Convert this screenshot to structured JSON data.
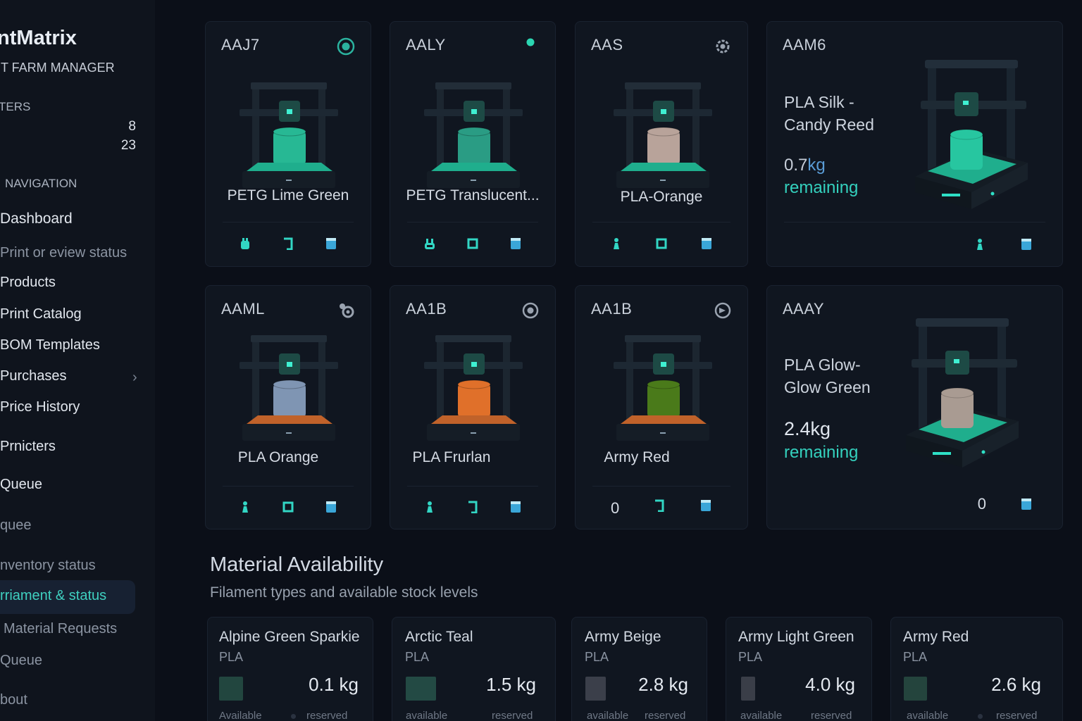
{
  "sidebar": {
    "brand": "intMatrix",
    "brand_sub": "NT FARM MANAGER",
    "printers_label": "TERS",
    "count_a": "8",
    "count_b": "23",
    "nav_label": "NAVIGATION",
    "items": [
      {
        "label": "Dashboard"
      },
      {
        "label": "Print or eview status"
      },
      {
        "label": "Products"
      },
      {
        "label": "Print Catalog"
      },
      {
        "label": "BOM Templates"
      },
      {
        "label": "Purchases"
      },
      {
        "label": "Price History"
      },
      {
        "label": "Prnicters"
      },
      {
        "label": "Queue"
      },
      {
        "label": "quee"
      },
      {
        "label": "nventory status"
      },
      {
        "label": "rriament & status"
      },
      {
        "label": "Material Requests"
      },
      {
        "label": "Queue"
      },
      {
        "label": "bout"
      }
    ]
  },
  "printers": [
    {
      "id": "AAJ7",
      "filament": "PETG  Lime Green",
      "filament_color": "#27b894",
      "plate_color": "#1fae8d",
      "status": "ring"
    },
    {
      "id": "AALY",
      "filament": "PETG Translucent...",
      "filament_color": "#2a9c84",
      "plate_color": "#1fae8d",
      "status": "dot"
    },
    {
      "id": "AAS",
      "filament": "PLA-Orange",
      "filament_color": "#b8a39a",
      "plate_color": "#1fae8d",
      "status": "gear"
    },
    {
      "id": "AAM6",
      "material": "PLA Silk -\nCandy Reed",
      "weight": "0.7",
      "unit": "kg",
      "remaining": "remaining",
      "filament_color": "#27c6a0",
      "plate_color": "#1fae8d"
    },
    {
      "id": "AAML",
      "filament": "PLA  Orange",
      "filament_color": "#7f95b3",
      "plate_color": "#c0622a",
      "status": "gear2"
    },
    {
      "id": "AA1B",
      "filament": "PLA Frurlan",
      "filament_color": "#e0702a",
      "plate_color": "#c0622a",
      "status": "target"
    },
    {
      "id": "AA1B",
      "filament": "Army Red",
      "filament_color": "#4a7a1a",
      "plate_color": "#c0622a",
      "status": "spin",
      "zero": "0"
    },
    {
      "id": "AAAY",
      "material": "PLA Glow-\nGlow Green",
      "weight": "2.4kg",
      "remaining": "remaining",
      "filament_color": "#a99b92",
      "plate_color": "#1fae8d",
      "zero": "0"
    }
  ],
  "materials": {
    "title": "Material Availability",
    "subtitle": "Filament types and available stock levels",
    "items": [
      {
        "name": "Alpine Green Sparkie",
        "type": "PLA",
        "qty": "0.1 kg",
        "available": "Available",
        "reserved": "reserved",
        "swatch": "#22463f"
      },
      {
        "name": "Arctic Teal",
        "type": "PLA",
        "qty": "1.5 kg",
        "available": "available",
        "reserved": "reserved",
        "swatch": "#234a44"
      },
      {
        "name": "Army Beige",
        "type": "PLA",
        "qty": "2.8 kg",
        "available": "available",
        "reserved": "reserved",
        "swatch": "#3b3f4a"
      },
      {
        "name": "Army Light Green",
        "type": "PLA",
        "qty": "4.0 kg",
        "available": "available",
        "reserved": "reserved",
        "swatch": "#3a3e48"
      },
      {
        "name": "Army Red",
        "type": "PLA",
        "qty": "2.6 kg",
        "available": "available",
        "reserved": "reserved",
        "swatch": "#24443d"
      }
    ]
  },
  "colors": {
    "accent": "#34d1be",
    "background": "#0b0f18",
    "card": "#101620"
  },
  "icons": [
    "ring-status-icon",
    "dot-status-icon",
    "gear-icon",
    "nozzle-icon",
    "bracket-icon",
    "square-icon",
    "spool-icon",
    "tool-icon"
  ]
}
